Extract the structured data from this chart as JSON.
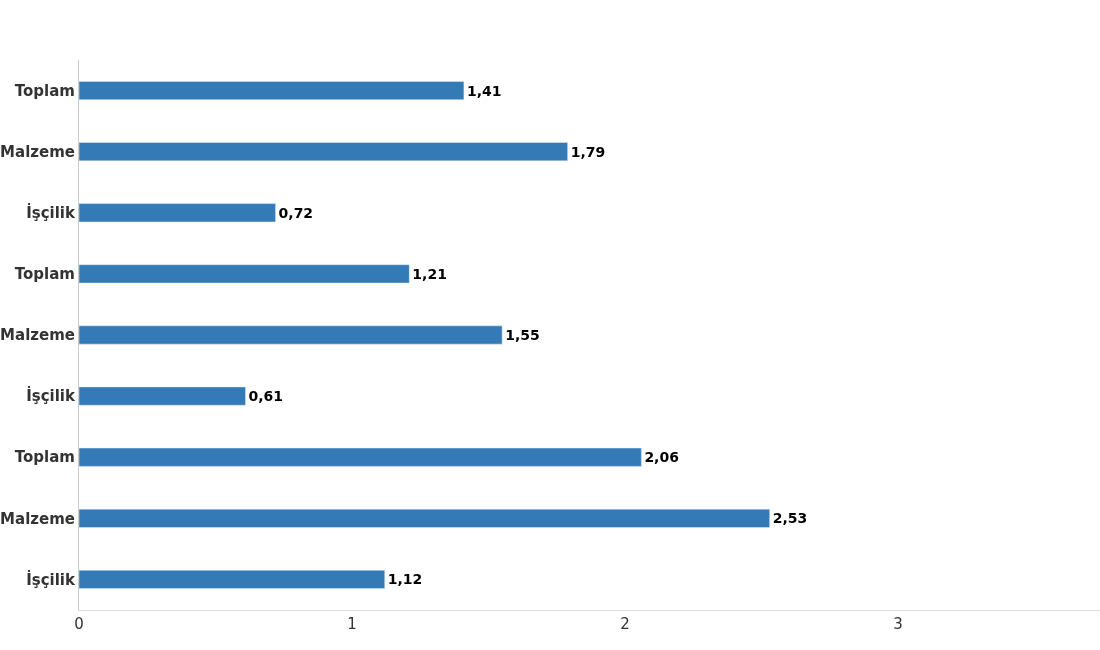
{
  "chart_data": {
    "type": "bar",
    "orientation": "horizontal",
    "categories": [
      "Toplam",
      "Malzeme",
      "İşçilik",
      "Toplam",
      "Malzeme",
      "İşçilik",
      "Toplam",
      "Malzeme",
      "İşçilik"
    ],
    "values": [
      1.41,
      1.79,
      0.72,
      1.21,
      1.55,
      0.61,
      2.06,
      2.53,
      1.12
    ],
    "value_labels": [
      "1,41",
      "1,79",
      "0,72",
      "1,21",
      "1,55",
      "0,61",
      "2,06",
      "2,53",
      "1,12"
    ],
    "color": "#337ab7",
    "xlim": [
      0,
      3.74
    ],
    "xticks": [
      0,
      1,
      2,
      3
    ],
    "legend": false
  }
}
